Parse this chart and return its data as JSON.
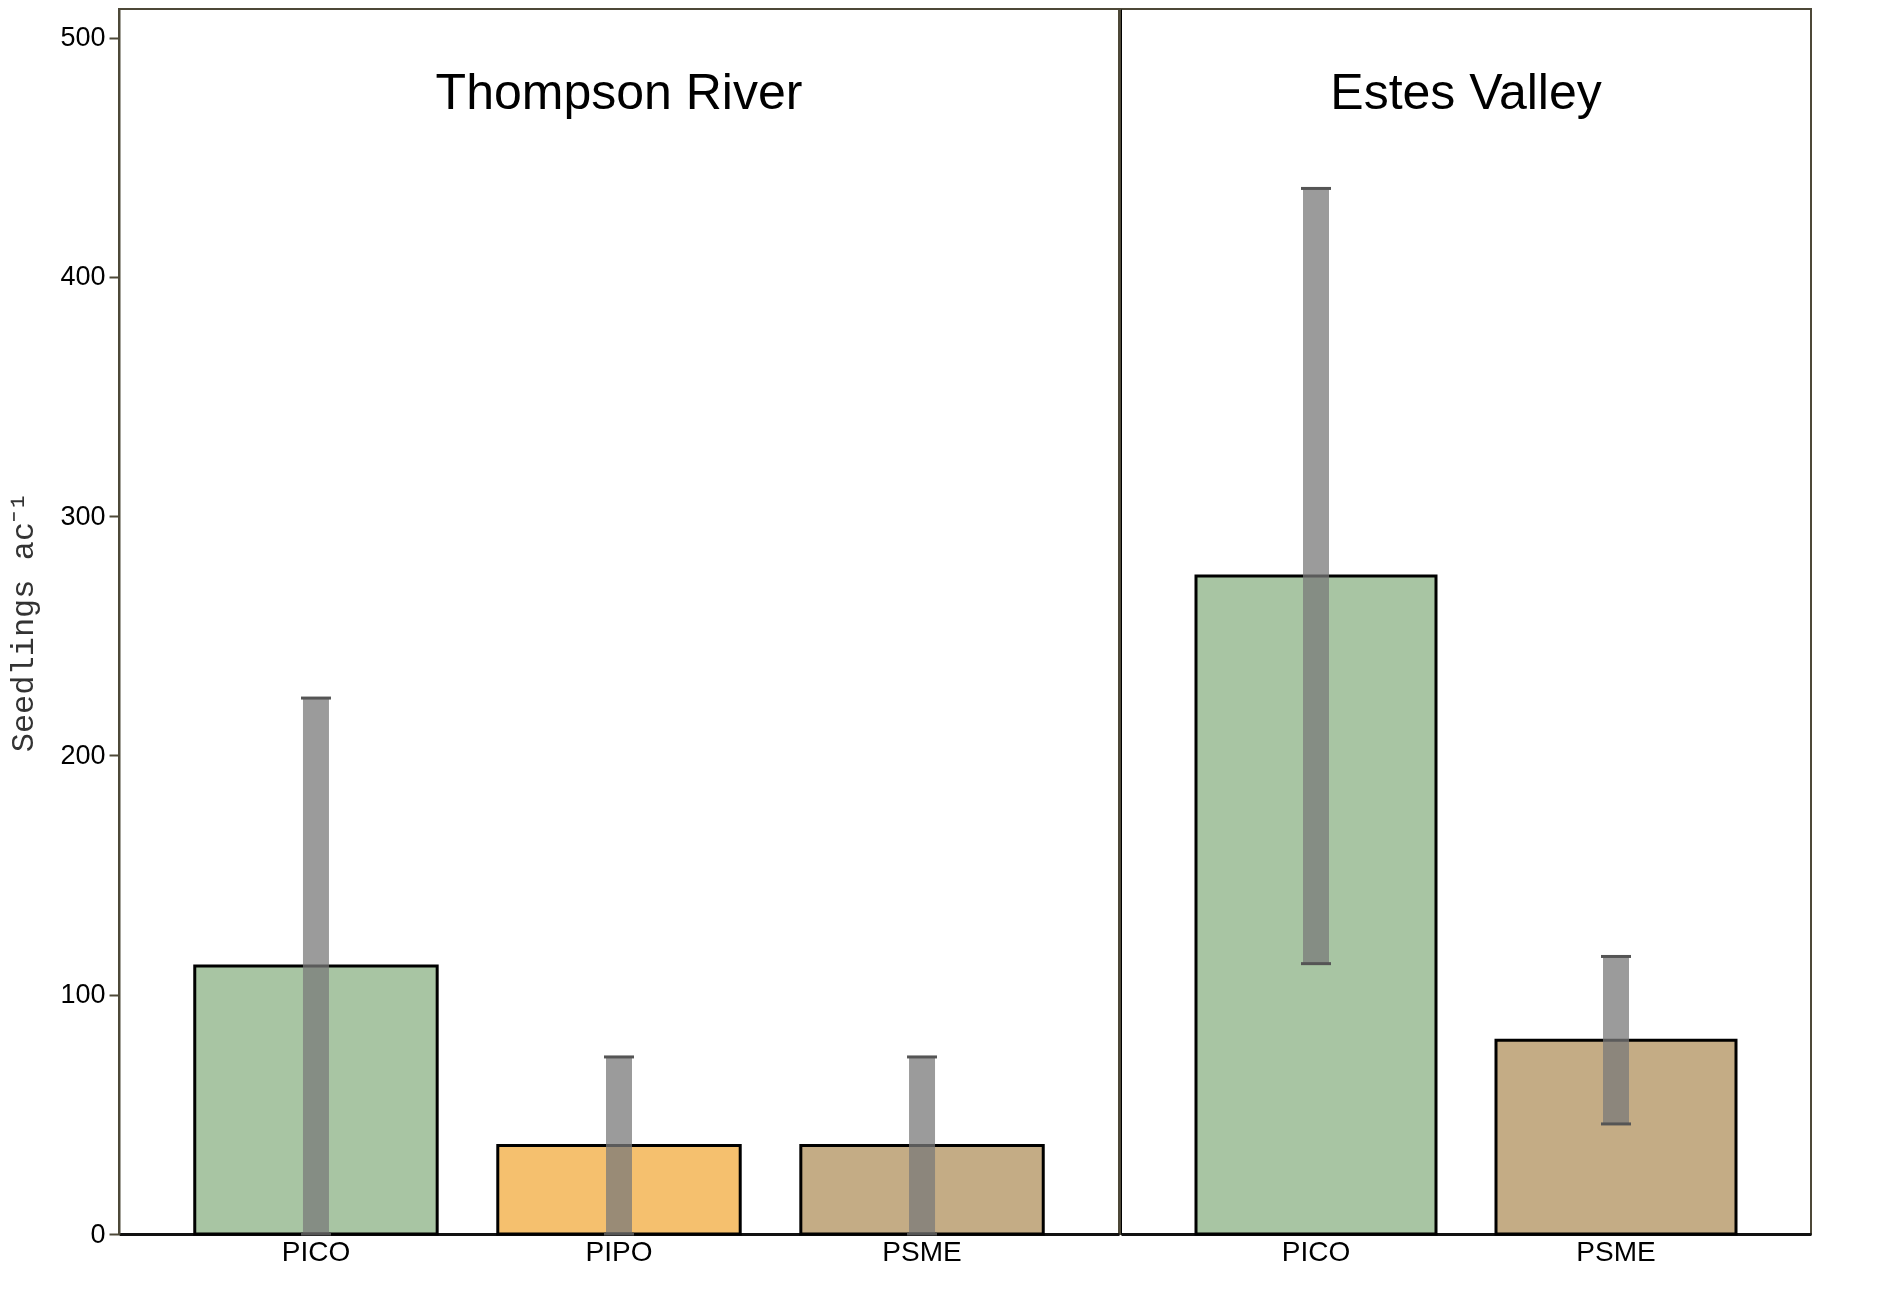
{
  "chart_data": [
    {
      "type": "bar",
      "title": "Thompson River",
      "ylabel": "Seedlings ac⁻¹",
      "categories": [
        "PICO",
        "PIPO",
        "PSME"
      ],
      "values": [
        112,
        37,
        37
      ],
      "colors": [
        "#a8c5a3",
        "#f5c06e",
        "#c4ac85"
      ],
      "errors": [
        112,
        37,
        37
      ],
      "ylim": [
        0,
        512
      ],
      "yticks": [
        0,
        100,
        200,
        300,
        400,
        500
      ]
    },
    {
      "type": "bar",
      "title": "Estes Valley",
      "categories": [
        "PICO",
        "PSME"
      ],
      "values": [
        275,
        81
      ],
      "colors": [
        "#a8c5a3",
        "#c4ac85"
      ],
      "errors": [
        162,
        35
      ],
      "ylim": [
        0,
        512
      ],
      "yticks": [
        0,
        100,
        200,
        300,
        400,
        500
      ],
      "tick_labels": "x"
    }
  ]
}
